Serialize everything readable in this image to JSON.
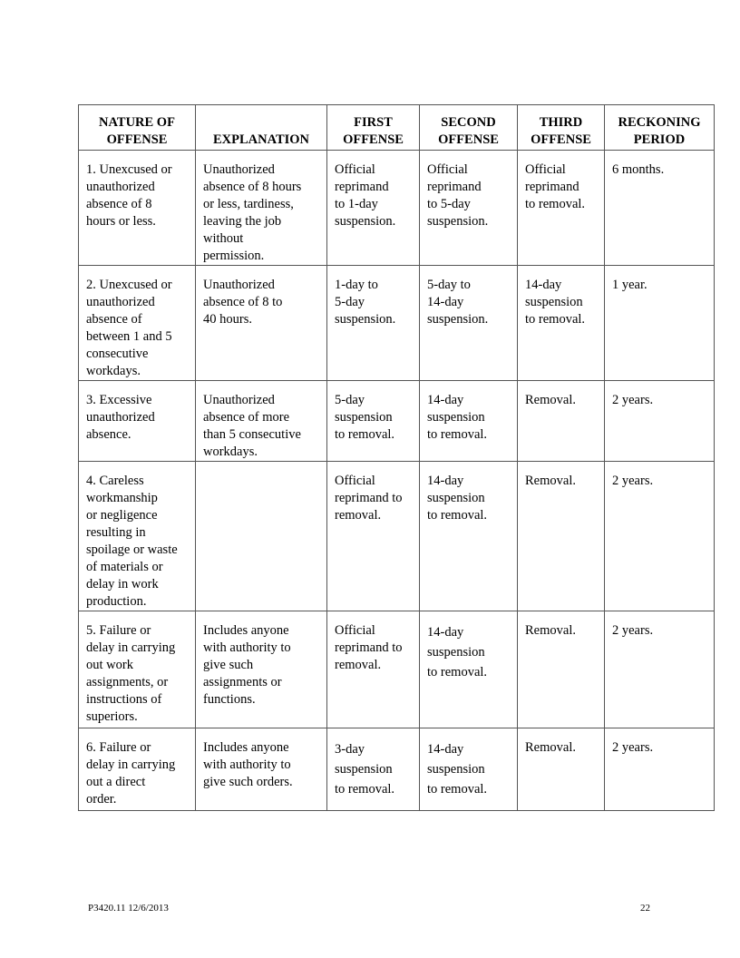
{
  "table": {
    "headers": [
      [
        "NATURE OF",
        "OFFENSE"
      ],
      [
        "EXPLANATION"
      ],
      [
        "FIRST",
        "OFFENSE"
      ],
      [
        "SECOND",
        "OFFENSE"
      ],
      [
        "THIRD",
        "OFFENSE"
      ],
      [
        "RECKONING",
        "PERIOD"
      ]
    ],
    "rows": [
      [
        [
          "1. Unexcused or",
          "unauthorized",
          "absence of 8",
          "hours or less."
        ],
        [
          "Unauthorized",
          "absence of 8 hours",
          "or less, tardiness,",
          "leaving the job",
          "without",
          "permission."
        ],
        [
          "Official",
          "reprimand",
          "to 1-day",
          "suspension."
        ],
        [
          "Official",
          "reprimand",
          "to 5-day",
          "suspension."
        ],
        [
          "Official",
          "reprimand",
          "to removal."
        ],
        [
          "6 months."
        ]
      ],
      [
        [
          "2. Unexcused or",
          "unauthorized",
          "absence of",
          "between 1 and 5",
          "consecutive",
          "workdays."
        ],
        [
          "Unauthorized",
          "absence of 8 to",
          "40 hours."
        ],
        [
          "1-day to",
          "5-day",
          "suspension."
        ],
        [
          "5-day to",
          "14-day",
          "suspension."
        ],
        [
          "14-day",
          "suspension",
          "to removal."
        ],
        [
          "1 year."
        ]
      ],
      [
        [
          "3. Excessive",
          "unauthorized",
          "absence."
        ],
        [
          "Unauthorized",
          "absence of more",
          "than 5 consecutive",
          "workdays."
        ],
        [
          "5-day",
          "suspension",
          "to removal."
        ],
        [
          "14-day",
          "suspension",
          "to removal."
        ],
        [
          "Removal."
        ],
        [
          "2 years."
        ]
      ],
      [
        [
          "4. Careless",
          "workmanship",
          "or negligence",
          "resulting in",
          "spoilage or waste",
          "of materials or",
          "delay in work",
          "production."
        ],
        [],
        [
          "Official",
          "reprimand to",
          "removal."
        ],
        [
          "14-day",
          "suspension",
          "to removal."
        ],
        [
          "Removal."
        ],
        [
          "2 years."
        ]
      ],
      [
        [
          "5. Failure or",
          "delay in carrying",
          "out work",
          "assignments, or",
          "instructions of",
          "superiors."
        ],
        [
          "Includes anyone",
          "with authority to",
          "give such",
          "assignments or",
          "functions."
        ],
        [
          "Official",
          "reprimand to",
          "removal."
        ],
        [
          "14-day",
          "suspension",
          "to removal."
        ],
        [
          "Removal."
        ],
        [
          "2 years."
        ]
      ],
      [
        [
          "6. Failure or",
          "delay in carrying",
          "out a direct",
          "order."
        ],
        [
          "Includes anyone",
          "with authority to",
          "give such orders."
        ],
        [
          "3-day",
          "suspension",
          "to removal."
        ],
        [
          "14-day",
          "suspension",
          "to removal."
        ],
        [
          "Removal."
        ],
        [
          "2 years."
        ]
      ]
    ]
  },
  "footer": {
    "doc_id": "P3420.11   12/6/2013",
    "page_number": "22"
  }
}
